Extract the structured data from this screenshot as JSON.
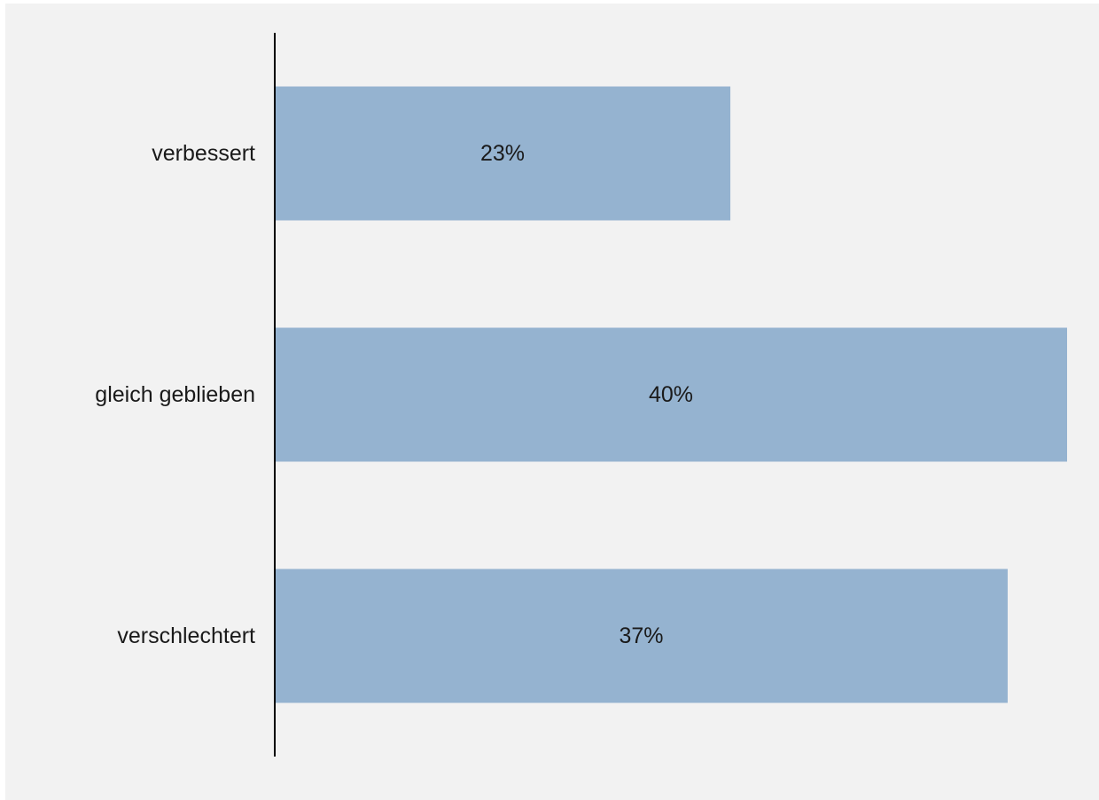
{
  "chart_data": {
    "type": "bar",
    "orientation": "horizontal",
    "categories": [
      "verbessert",
      "gleich geblieben",
      "verschlechtert"
    ],
    "values": [
      23,
      40,
      37
    ],
    "data_labels": [
      "23%",
      "40%",
      "37%"
    ],
    "unit": "%",
    "xlim": [
      0,
      40
    ],
    "title": "",
    "xlabel": "",
    "ylabel": "",
    "grid": false,
    "legend": "none",
    "colors": {
      "bar": "#95b3d0",
      "axis": "#000000",
      "background": "#f2f2f2",
      "text": "#1a1a1a"
    }
  }
}
